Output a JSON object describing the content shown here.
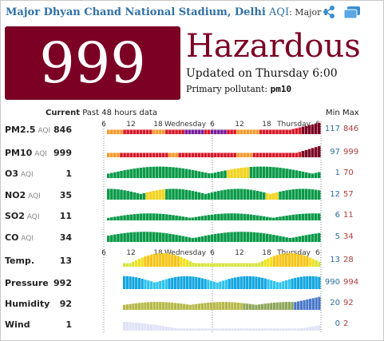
{
  "header": {
    "city": "Major Dhyan Chand National Stadium, Delhi",
    "aqi_label": "AQI",
    "sub": ": Major I"
  },
  "aqi": {
    "value": "999",
    "status": "Hazardous",
    "updated": "Updated on Thursday 6:00",
    "primary_label": "Primary pollutant:",
    "primary_value": "pm10"
  },
  "table": {
    "current_label": "Current",
    "past_label": "Past 48 hours data",
    "min_label": "Min",
    "max_label": "Max",
    "ticks_top": [
      "6",
      "12",
      "18",
      "Wednesday",
      "6",
      "12",
      "18",
      "Thursday",
      "6"
    ],
    "ticks_mid": [
      "6",
      "12",
      "18",
      "Wednesday",
      "6",
      "12",
      "18",
      "Thursday",
      "6"
    ]
  },
  "colors": {
    "hazardous": "#7b0024",
    "good": "#0a9a48",
    "moderate": "#f2d31b",
    "usg": "#f59a2b",
    "unhealthy": "#d7192a",
    "very_unhealthy": "#7a1f9b",
    "link": "#2f6fa6"
  },
  "rows": [
    {
      "name": "PM2.5",
      "unit": "AQI",
      "current": "846",
      "min": "117",
      "max": "846"
    },
    {
      "name": "PM10",
      "unit": "AQI",
      "current": "999",
      "min": "97",
      "max": "999"
    },
    {
      "name": "O3",
      "unit": "AQI",
      "current": "1",
      "min": "1",
      "max": "70"
    },
    {
      "name": "NO2",
      "unit": "AQI",
      "current": "35",
      "min": "12",
      "max": "57"
    },
    {
      "name": "SO2",
      "unit": "AQI",
      "current": "11",
      "min": "6",
      "max": "11"
    },
    {
      "name": "CO",
      "unit": "AQI",
      "current": "34",
      "min": "5",
      "max": "34"
    },
    {
      "name": "Temp.",
      "unit": "",
      "current": "13",
      "min": "13",
      "max": "28"
    },
    {
      "name": "Pressure",
      "unit": "",
      "current": "992",
      "min": "990",
      "max": "994"
    },
    {
      "name": "Humidity",
      "unit": "",
      "current": "92",
      "min": "20",
      "max": "92"
    },
    {
      "name": "Wind",
      "unit": "",
      "current": "1",
      "min": "0",
      "max": "2"
    }
  ],
  "icons": {
    "share": "share-icon",
    "camera": "camera-icon"
  }
}
